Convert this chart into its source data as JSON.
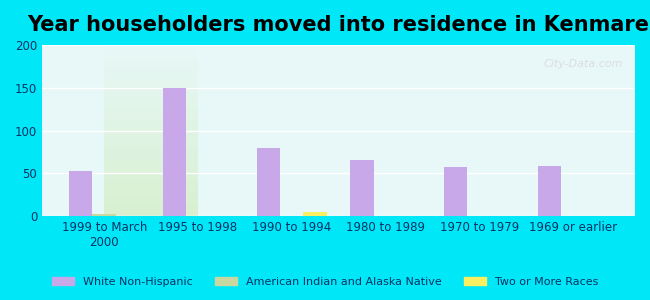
{
  "title": "Year householders moved into residence in Kenmare",
  "categories": [
    "1999 to March\n2000",
    "1995 to 1998",
    "1990 to 1994",
    "1980 to 1989",
    "1970 to 1979",
    "1969 or earlier"
  ],
  "white_non_hispanic": [
    53,
    150,
    80,
    65,
    57,
    58
  ],
  "american_indian": [
    3,
    0,
    0,
    0,
    0,
    0
  ],
  "two_or_more": [
    0,
    0,
    5,
    0,
    0,
    0
  ],
  "bar_color_white": "#c8a8e8",
  "bar_color_indian": "#c8d8a0",
  "bar_color_two": "#f8f060",
  "ylim": [
    0,
    200
  ],
  "yticks": [
    0,
    50,
    100,
    150,
    200
  ],
  "background_outer": "#00e8f8",
  "background_plot_top": "#e8f8f8",
  "background_plot_bottom": "#d8f0d0",
  "legend_labels": [
    "White Non-Hispanic",
    "American Indian and Alaska Native",
    "Two or More Races"
  ],
  "legend_colors": [
    "#c8a8e8",
    "#c8d8a0",
    "#f8f060"
  ],
  "watermark": "City-Data.com",
  "title_fontsize": 15,
  "axis_label_fontsize": 8.5
}
